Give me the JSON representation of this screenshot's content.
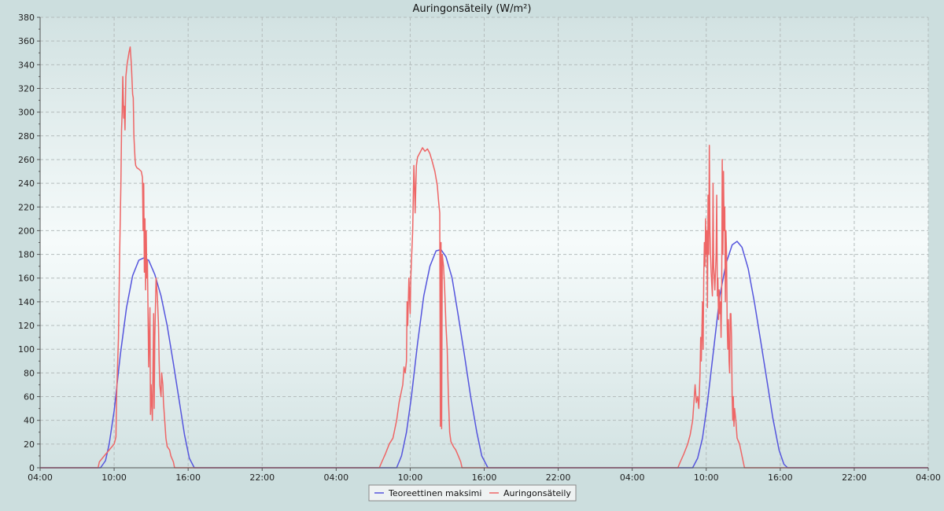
{
  "chart_data": {
    "type": "line",
    "title": "Auringonsäteily (W/m²)",
    "xlabel": "",
    "ylabel": "",
    "grid": true,
    "legend_position": "bottom",
    "x_unit": "hours",
    "xlim": [
      4,
      76
    ],
    "ylim": [
      0,
      380
    ],
    "y_ticks": [
      0,
      20,
      40,
      60,
      80,
      100,
      120,
      140,
      160,
      180,
      200,
      220,
      240,
      260,
      280,
      300,
      320,
      340,
      360,
      380
    ],
    "x_ticks": [
      {
        "value": 4,
        "label": "04:00"
      },
      {
        "value": 10,
        "label": "10:00"
      },
      {
        "value": 16,
        "label": "16:00"
      },
      {
        "value": 22,
        "label": "22:00"
      },
      {
        "value": 28,
        "label": "04:00"
      },
      {
        "value": 34,
        "label": "10:00"
      },
      {
        "value": 40,
        "label": "16:00"
      },
      {
        "value": 46,
        "label": "22:00"
      },
      {
        "value": 52,
        "label": "04:00"
      },
      {
        "value": 58,
        "label": "10:00"
      },
      {
        "value": 64,
        "label": "16:00"
      },
      {
        "value": 70,
        "label": "22:00"
      },
      {
        "value": 76,
        "label": "04:00"
      }
    ],
    "series": [
      {
        "name": "Teoreettinen maksimi",
        "color": "#5555dd",
        "points": [
          [
            4,
            0
          ],
          [
            8.9,
            0
          ],
          [
            9.3,
            6
          ],
          [
            9.6,
            20
          ],
          [
            10.0,
            48
          ],
          [
            10.5,
            95
          ],
          [
            11.0,
            135
          ],
          [
            11.5,
            162
          ],
          [
            12.0,
            175
          ],
          [
            12.4,
            177
          ],
          [
            12.8,
            175
          ],
          [
            13.3,
            163
          ],
          [
            13.8,
            145
          ],
          [
            14.3,
            120
          ],
          [
            14.8,
            88
          ],
          [
            15.3,
            55
          ],
          [
            15.7,
            28
          ],
          [
            16.1,
            8
          ],
          [
            16.5,
            0
          ],
          [
            27.9,
            0
          ],
          [
            32.9,
            0
          ],
          [
            33.3,
            10
          ],
          [
            33.7,
            30
          ],
          [
            34.1,
            60
          ],
          [
            34.6,
            105
          ],
          [
            35.1,
            145
          ],
          [
            35.6,
            170
          ],
          [
            36.1,
            183
          ],
          [
            36.5,
            184
          ],
          [
            36.9,
            178
          ],
          [
            37.4,
            160
          ],
          [
            37.9,
            128
          ],
          [
            38.4,
            95
          ],
          [
            38.9,
            60
          ],
          [
            39.4,
            30
          ],
          [
            39.8,
            10
          ],
          [
            40.3,
            0
          ],
          [
            51.9,
            0
          ],
          [
            56.9,
            0
          ],
          [
            57.3,
            8
          ],
          [
            57.7,
            25
          ],
          [
            58.1,
            55
          ],
          [
            58.6,
            100
          ],
          [
            59.1,
            145
          ],
          [
            59.6,
            172
          ],
          [
            60.1,
            188
          ],
          [
            60.5,
            191
          ],
          [
            60.9,
            186
          ],
          [
            61.4,
            168
          ],
          [
            61.9,
            140
          ],
          [
            62.4,
            108
          ],
          [
            62.9,
            75
          ],
          [
            63.4,
            42
          ],
          [
            63.9,
            15
          ],
          [
            64.3,
            3
          ],
          [
            64.6,
            0
          ],
          [
            76,
            0
          ]
        ]
      },
      {
        "name": "Auringonsäteily",
        "color": "#ee6666",
        "points": [
          [
            4,
            0
          ],
          [
            8.7,
            0
          ],
          [
            8.8,
            5
          ],
          [
            9.2,
            10
          ],
          [
            9.6,
            15
          ],
          [
            10.0,
            20
          ],
          [
            10.15,
            26
          ],
          [
            10.2,
            60
          ],
          [
            10.35,
            110
          ],
          [
            10.45,
            180
          ],
          [
            10.55,
            240
          ],
          [
            10.6,
            285
          ],
          [
            10.65,
            300
          ],
          [
            10.7,
            330
          ],
          [
            10.78,
            295
          ],
          [
            10.82,
            305
          ],
          [
            10.88,
            285
          ],
          [
            10.95,
            330
          ],
          [
            11.05,
            340
          ],
          [
            11.2,
            350
          ],
          [
            11.3,
            355
          ],
          [
            11.4,
            340
          ],
          [
            11.5,
            315
          ],
          [
            11.55,
            312
          ],
          [
            11.6,
            280
          ],
          [
            11.7,
            260
          ],
          [
            11.75,
            255
          ],
          [
            11.85,
            253
          ],
          [
            12.0,
            252
          ],
          [
            12.2,
            250
          ],
          [
            12.3,
            245
          ],
          [
            12.35,
            200
          ],
          [
            12.4,
            240
          ],
          [
            12.45,
            165
          ],
          [
            12.5,
            210
          ],
          [
            12.55,
            150
          ],
          [
            12.6,
            200
          ],
          [
            12.65,
            160
          ],
          [
            12.7,
            175
          ],
          [
            12.8,
            85
          ],
          [
            12.9,
            135
          ],
          [
            12.95,
            45
          ],
          [
            13.0,
            70
          ],
          [
            13.1,
            40
          ],
          [
            13.2,
            130
          ],
          [
            13.25,
            50
          ],
          [
            13.3,
            110
          ],
          [
            13.4,
            160
          ],
          [
            13.5,
            145
          ],
          [
            13.6,
            120
          ],
          [
            13.65,
            90
          ],
          [
            13.7,
            70
          ],
          [
            13.8,
            60
          ],
          [
            13.85,
            80
          ],
          [
            13.95,
            70
          ],
          [
            14.0,
            55
          ],
          [
            14.1,
            40
          ],
          [
            14.2,
            25
          ],
          [
            14.3,
            18
          ],
          [
            14.5,
            15
          ],
          [
            14.6,
            10
          ],
          [
            14.8,
            5
          ],
          [
            14.9,
            0
          ],
          [
            31.5,
            0
          ],
          [
            31.7,
            5
          ],
          [
            32.0,
            12
          ],
          [
            32.3,
            20
          ],
          [
            32.6,
            25
          ],
          [
            32.9,
            40
          ],
          [
            33.1,
            55
          ],
          [
            33.3,
            65
          ],
          [
            33.4,
            70
          ],
          [
            33.5,
            85
          ],
          [
            33.6,
            80
          ],
          [
            33.7,
            90
          ],
          [
            33.75,
            140
          ],
          [
            33.8,
            120
          ],
          [
            33.9,
            160
          ],
          [
            34.0,
            130
          ],
          [
            34.05,
            160
          ],
          [
            34.2,
            200
          ],
          [
            34.3,
            255
          ],
          [
            34.35,
            240
          ],
          [
            34.4,
            215
          ],
          [
            34.5,
            255
          ],
          [
            34.6,
            262
          ],
          [
            34.8,
            266
          ],
          [
            35.0,
            270
          ],
          [
            35.2,
            267
          ],
          [
            35.4,
            269
          ],
          [
            35.6,
            265
          ],
          [
            35.8,
            258
          ],
          [
            36.0,
            250
          ],
          [
            36.2,
            238
          ],
          [
            36.3,
            225
          ],
          [
            36.4,
            215
          ],
          [
            36.45,
            35
          ],
          [
            36.5,
            190
          ],
          [
            36.55,
            33
          ],
          [
            36.6,
            180
          ],
          [
            36.7,
            170
          ],
          [
            36.8,
            150
          ],
          [
            36.9,
            120
          ],
          [
            37.0,
            100
          ],
          [
            37.1,
            60
          ],
          [
            37.2,
            30
          ],
          [
            37.3,
            22
          ],
          [
            37.5,
            18
          ],
          [
            37.7,
            15
          ],
          [
            37.9,
            10
          ],
          [
            38.1,
            5
          ],
          [
            38.2,
            0
          ],
          [
            55.7,
            0
          ],
          [
            55.9,
            5
          ],
          [
            56.2,
            12
          ],
          [
            56.5,
            20
          ],
          [
            56.7,
            28
          ],
          [
            56.9,
            40
          ],
          [
            57.0,
            55
          ],
          [
            57.1,
            70
          ],
          [
            57.2,
            55
          ],
          [
            57.3,
            60
          ],
          [
            57.4,
            50
          ],
          [
            57.5,
            80
          ],
          [
            57.55,
            110
          ],
          [
            57.6,
            90
          ],
          [
            57.7,
            140
          ],
          [
            57.75,
            100
          ],
          [
            57.8,
            160
          ],
          [
            57.85,
            190
          ],
          [
            57.9,
            170
          ],
          [
            57.95,
            210
          ],
          [
            58.0,
            180
          ],
          [
            58.05,
            200
          ],
          [
            58.1,
            135
          ],
          [
            58.15,
            230
          ],
          [
            58.2,
            180
          ],
          [
            58.25,
            272
          ],
          [
            58.3,
            200
          ],
          [
            58.35,
            180
          ],
          [
            58.4,
            165
          ],
          [
            58.5,
            145
          ],
          [
            58.55,
            240
          ],
          [
            58.6,
            170
          ],
          [
            58.7,
            150
          ],
          [
            58.8,
            180
          ],
          [
            58.85,
            230
          ],
          [
            58.9,
            145
          ],
          [
            58.95,
            160
          ],
          [
            59.0,
            125
          ],
          [
            59.05,
            150
          ],
          [
            59.1,
            130
          ],
          [
            59.15,
            140
          ],
          [
            59.2,
            110
          ],
          [
            59.25,
            150
          ],
          [
            59.3,
            260
          ],
          [
            59.35,
            180
          ],
          [
            59.4,
            250
          ],
          [
            59.45,
            200
          ],
          [
            59.5,
            220
          ],
          [
            59.55,
            140
          ],
          [
            59.6,
            200
          ],
          [
            59.65,
            180
          ],
          [
            59.7,
            120
          ],
          [
            59.75,
            100
          ],
          [
            59.8,
            125
          ],
          [
            59.85,
            90
          ],
          [
            59.9,
            80
          ],
          [
            59.95,
            130
          ],
          [
            60.0,
            130
          ],
          [
            60.05,
            110
          ],
          [
            60.1,
            60
          ],
          [
            60.15,
            40
          ],
          [
            60.2,
            60
          ],
          [
            60.25,
            35
          ],
          [
            60.3,
            50
          ],
          [
            60.4,
            40
          ],
          [
            60.5,
            25
          ],
          [
            60.7,
            20
          ],
          [
            60.9,
            10
          ],
          [
            61.0,
            5
          ],
          [
            61.1,
            0
          ],
          [
            76,
            0
          ]
        ]
      }
    ]
  }
}
